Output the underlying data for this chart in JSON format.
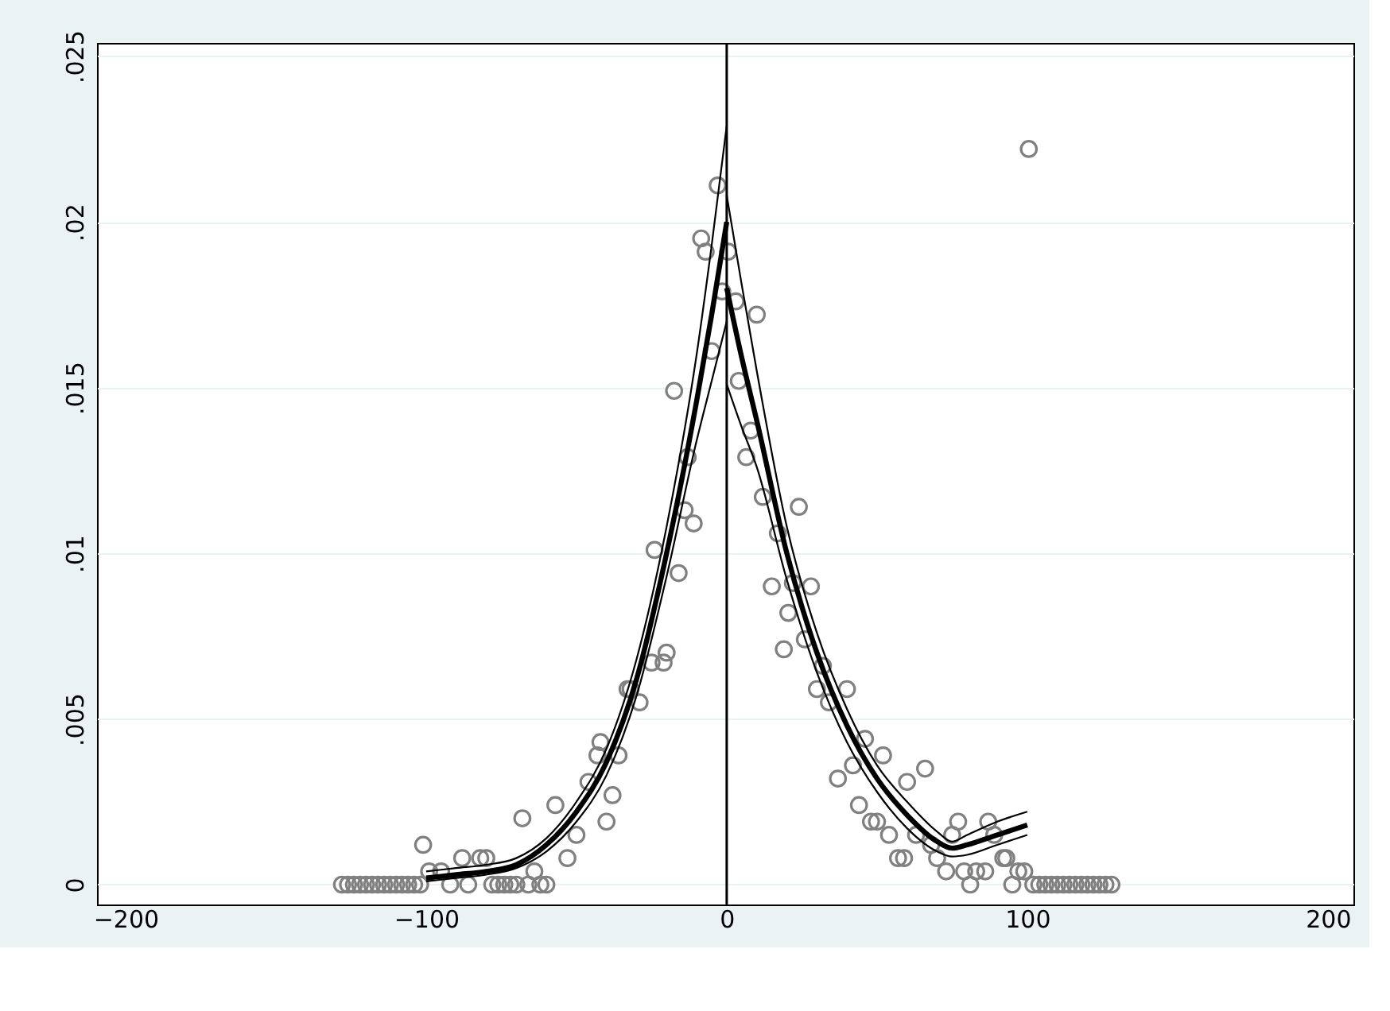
{
  "chart_data": {
    "type": "scatter",
    "xlim": [
      -209.5,
      208.5
    ],
    "ylim": [
      -0.0006,
      0.0254
    ],
    "xticks": [
      -200,
      -100,
      0,
      100,
      200
    ],
    "yticks": [
      {
        "value": 0,
        "label": "0"
      },
      {
        "value": 0.005,
        "label": ".005"
      },
      {
        "value": 0.01,
        "label": ".01"
      },
      {
        "value": 0.015,
        "label": ".015"
      },
      {
        "value": 0.02,
        "label": ".02"
      },
      {
        "value": 0.025,
        "label": ".025"
      }
    ],
    "grid": "y",
    "ref_lines": [
      {
        "axis": "x",
        "value": 0,
        "color": "#000000"
      }
    ],
    "series": [
      {
        "type": "scatter",
        "color": "#808080",
        "marker": "circle",
        "x": [
          -128,
          -126,
          -124,
          -122,
          -120,
          -118,
          -116,
          -114,
          -112,
          -110,
          -108,
          -106,
          -104,
          -102,
          -101,
          -99,
          -95,
          -92,
          -88,
          -86,
          -82,
          -80,
          -78,
          -76,
          -74,
          -72,
          -70,
          -68,
          -66,
          -64,
          -62,
          -60,
          -57,
          -53,
          -50,
          -46,
          -43,
          -42,
          -40,
          -38,
          -36,
          -33,
          -32,
          -29,
          -25,
          -24,
          -21,
          -20,
          -17.5,
          -16,
          -14,
          -13,
          -11,
          -8.5,
          -7,
          -5,
          -3,
          -1.5,
          0.5,
          3,
          4,
          6.5,
          8,
          10,
          12,
          15,
          17,
          19,
          20.5,
          22,
          24,
          26,
          28,
          30,
          32,
          34,
          37,
          40,
          42,
          44,
          46,
          48,
          50,
          52,
          54,
          57,
          59,
          60,
          63,
          66,
          68,
          70,
          73,
          75,
          77,
          79,
          81,
          83,
          86,
          87,
          89,
          92,
          93,
          95,
          97,
          99,
          100.5,
          102,
          104,
          106,
          108,
          110,
          112,
          114,
          116,
          118,
          120,
          122,
          124,
          126,
          128
        ],
        "values": [
          0,
          0,
          0,
          0,
          0,
          0,
          0,
          0,
          0,
          0,
          0,
          0,
          0,
          0,
          0.0012,
          0.0004,
          0.0004,
          0,
          0.0008,
          0,
          0.0008,
          0.0008,
          0,
          0,
          0,
          0,
          0,
          0.002,
          0,
          0.0004,
          0,
          0,
          0.0024,
          0.0008,
          0.0015,
          0.0031,
          0.0039,
          0.0043,
          0.0019,
          0.0027,
          0.0039,
          0.0059,
          0.0059,
          0.0055,
          0.0067,
          0.0101,
          0.0067,
          0.007,
          0.0149,
          0.0094,
          0.0113,
          0.0129,
          0.0109,
          0.0195,
          0.0191,
          0.0161,
          0.0211,
          0.0179,
          0.0191,
          0.0176,
          0.0152,
          0.0129,
          0.0137,
          0.0172,
          0.0117,
          0.009,
          0.0106,
          0.0071,
          0.0082,
          0.0091,
          0.0114,
          0.0074,
          0.009,
          0.0059,
          0.0066,
          0.0055,
          0.0032,
          0.0059,
          0.0036,
          0.0024,
          0.0044,
          0.0019,
          0.0019,
          0.0039,
          0.0015,
          0.0008,
          0.0008,
          0.0031,
          0.0015,
          0.0035,
          0.0012,
          0.0008,
          0.0004,
          0.0015,
          0.0019,
          0.0004,
          0,
          0.0004,
          0.0004,
          0.0019,
          0.0015,
          0.0008,
          0.0008,
          0,
          0.0004,
          0.0004,
          0.0222,
          0,
          0,
          0,
          0,
          0,
          0,
          0,
          0,
          0,
          0,
          0,
          0,
          0,
          0
        ]
      },
      {
        "type": "line",
        "color": "#000000",
        "marker": "none",
        "x": [
          -100,
          -90,
          -80,
          -70,
          -60,
          -50,
          -40,
          -30,
          -20,
          -10,
          -5,
          0
        ],
        "values": [
          0.0002,
          0.0003,
          0.0004,
          0.0006,
          0.0012,
          0.0022,
          0.0037,
          0.0062,
          0.01,
          0.0146,
          0.0172,
          0.02
        ]
      },
      {
        "type": "line",
        "color": "#000000",
        "marker": "none",
        "x": [
          -100,
          -90,
          -80,
          -70,
          -60,
          -50,
          -40,
          -30,
          -20,
          -10,
          -5,
          0
        ],
        "values": [
          0.0001,
          0.0002,
          0.0003,
          0.0005,
          0.001,
          0.0019,
          0.0033,
          0.0057,
          0.0093,
          0.0134,
          0.0152,
          0.017
        ]
      },
      {
        "type": "line",
        "color": "#000000",
        "marker": "none",
        "x": [
          -100,
          -90,
          -80,
          -70,
          -60,
          -50,
          -40,
          -30,
          -20,
          -10,
          -5,
          0
        ],
        "values": [
          0.0004,
          0.0005,
          0.0006,
          0.0008,
          0.0014,
          0.0025,
          0.0041,
          0.0068,
          0.0108,
          0.016,
          0.0193,
          0.0229
        ]
      },
      {
        "type": "line",
        "color": "#000000",
        "marker": "none",
        "x": [
          0,
          5,
          10,
          20,
          30,
          40,
          50,
          60,
          70,
          75,
          80,
          90,
          100
        ],
        "values": [
          0.018,
          0.0159,
          0.014,
          0.01,
          0.007,
          0.0048,
          0.0032,
          0.0021,
          0.0013,
          0.0011,
          0.0012,
          0.0015,
          0.0018
        ]
      },
      {
        "type": "line",
        "color": "#000000",
        "marker": "none",
        "x": [
          0,
          5,
          10,
          20,
          30,
          40,
          50,
          60,
          70,
          75,
          80,
          90,
          100
        ],
        "values": [
          0.0151,
          0.0138,
          0.0126,
          0.0092,
          0.0064,
          0.0043,
          0.0028,
          0.0017,
          0.001,
          0.00085,
          0.0009,
          0.0012,
          0.0015
        ]
      },
      {
        "type": "line",
        "color": "#000000",
        "marker": "none",
        "x": [
          0,
          5,
          10,
          20,
          30,
          40,
          50,
          60,
          70,
          75,
          80,
          90,
          100
        ],
        "values": [
          0.0208,
          0.0181,
          0.0155,
          0.0108,
          0.0076,
          0.0053,
          0.0036,
          0.0025,
          0.0016,
          0.0013,
          0.0015,
          0.0019,
          0.0022
        ]
      }
    ]
  }
}
